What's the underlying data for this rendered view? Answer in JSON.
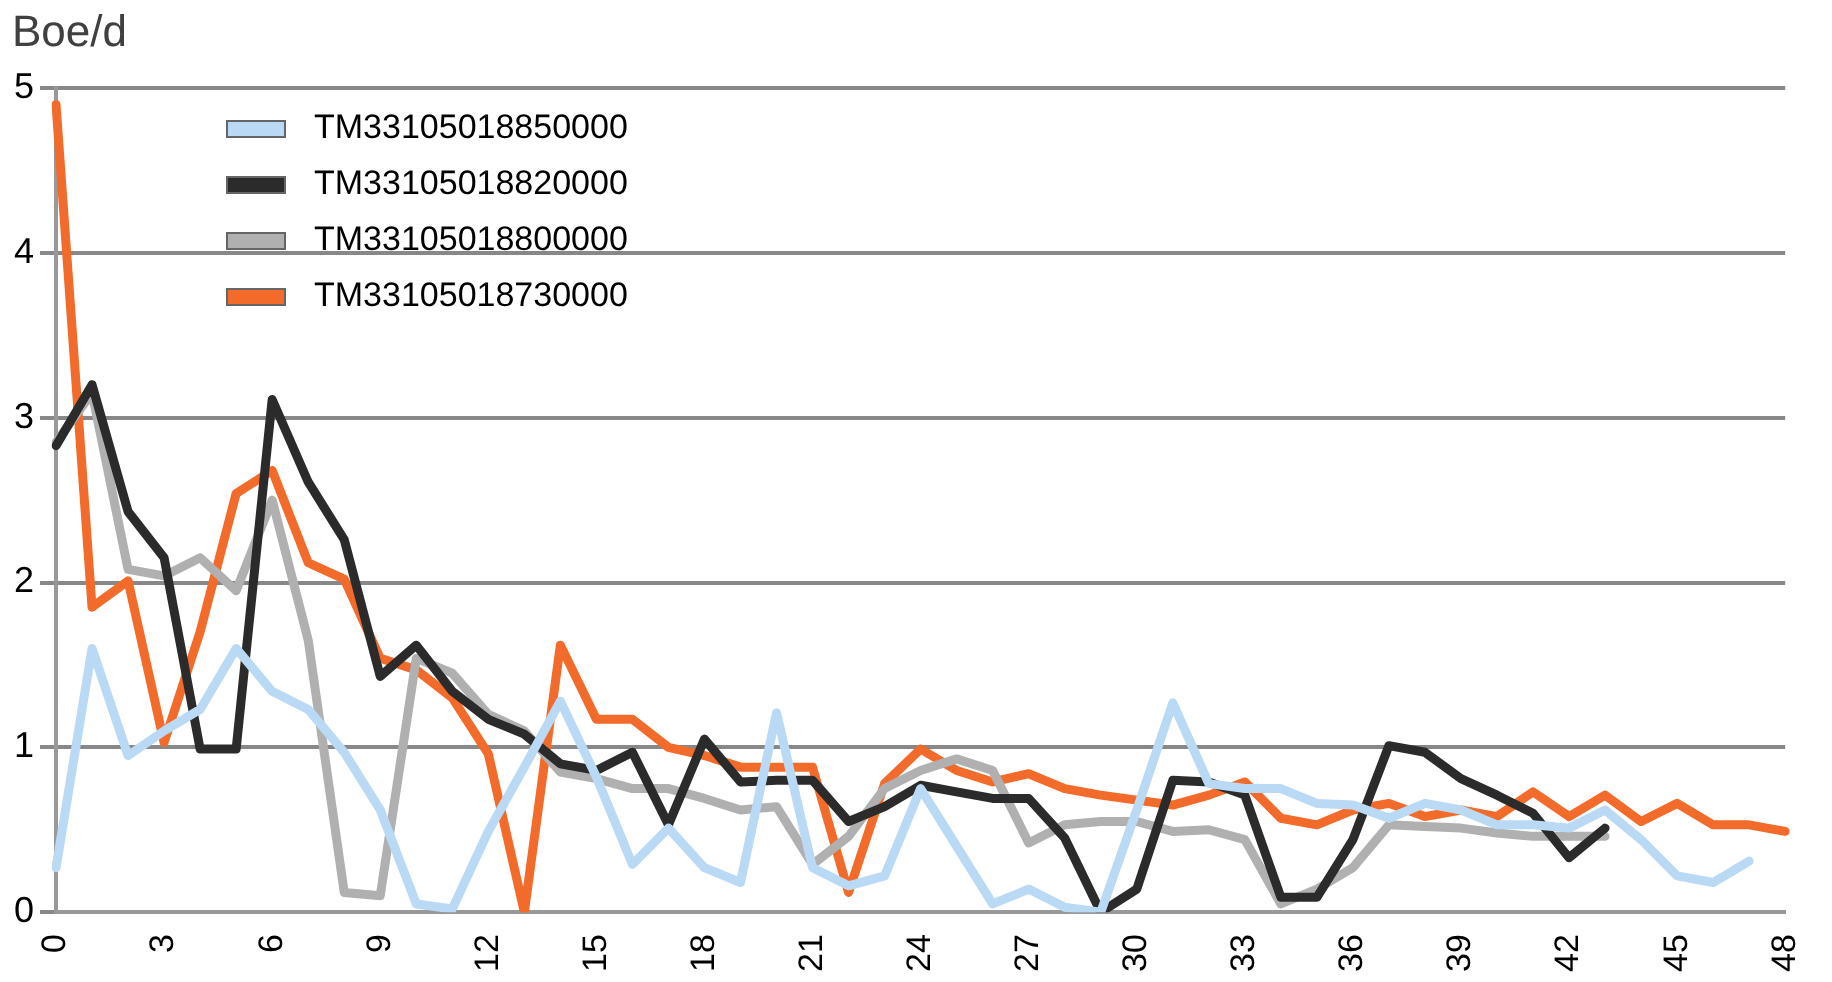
{
  "chart_data": {
    "type": "line",
    "ylabel": "Boe/d",
    "categories": [
      "0",
      null,
      null,
      "3",
      null,
      null,
      "6",
      null,
      null,
      "9",
      null,
      null,
      "12",
      null,
      null,
      "15",
      null,
      null,
      "18",
      null,
      null,
      "21",
      null,
      null,
      "24",
      null,
      null,
      "27",
      null,
      null,
      "30",
      null,
      null,
      "33",
      null,
      null,
      "36",
      null,
      null,
      "39",
      null,
      null,
      "42",
      null,
      null,
      "45",
      null,
      null,
      "48"
    ],
    "ylim": [
      0,
      5
    ],
    "yticks": [
      0,
      1,
      2,
      3,
      4,
      5
    ],
    "grid": "y",
    "legend": "top left",
    "marker": "none",
    "line_style": "solid",
    "series": [
      {
        "name": "TM33105018850000",
        "color": "#b9d9f5",
        "values": [
          0.27,
          1.6,
          0.95,
          1.1,
          1.23,
          1.6,
          1.34,
          1.23,
          0.97,
          0.62,
          0.05,
          0.02,
          0.49,
          0.88,
          1.28,
          0.82,
          0.29,
          0.51,
          0.27,
          0.18,
          1.21,
          0.27,
          0.16,
          0.22,
          0.75,
          0.4,
          0.05,
          0.14,
          0.03,
          0,
          0.62,
          1.27,
          0.78,
          0.75,
          0.75,
          0.66,
          0.65,
          0.57,
          0.66,
          0.62,
          0.53,
          0.53,
          0.51,
          0.62,
          0.44,
          0.22,
          0.18,
          0.31,
          null
        ]
      },
      {
        "name": "TM33105018820000",
        "color": "#2b2b2b",
        "values": [
          2.83,
          3.2,
          2.43,
          2.15,
          0.99,
          0.99,
          3.11,
          2.61,
          2.26,
          1.43,
          1.62,
          1.34,
          1.17,
          1.08,
          0.9,
          0.86,
          0.97,
          0.53,
          1.05,
          0.79,
          0.8,
          0.8,
          0.55,
          0.64,
          0.77,
          0.73,
          0.69,
          0.69,
          0.45,
          0,
          0.14,
          0.8,
          0.79,
          0.71,
          0.09,
          0.09,
          0.44,
          1.01,
          0.97,
          0.81,
          0.71,
          0.6,
          0.33,
          0.51,
          null,
          null,
          null,
          null,
          null
        ]
      },
      {
        "name": "TM33105018800000",
        "color": "#b0b0b0",
        "values": [
          2.85,
          3.15,
          2.08,
          2.04,
          2.15,
          1.95,
          2.5,
          1.65,
          0.12,
          0.1,
          1.54,
          1.45,
          1.2,
          1.1,
          0.85,
          0.81,
          0.75,
          0.75,
          0.69,
          0.62,
          0.64,
          0.29,
          0.46,
          0.75,
          0.86,
          0.93,
          0.86,
          0.42,
          0.53,
          0.55,
          0.55,
          0.49,
          0.5,
          0.44,
          0.05,
          0.14,
          0.27,
          0.53,
          0.52,
          0.51,
          0.48,
          0.46,
          0.46,
          0.46,
          null,
          null,
          null,
          null,
          null
        ]
      },
      {
        "name": "TM33105018730000",
        "color": "#f26b2b",
        "values": [
          4.9,
          1.85,
          2.01,
          1.03,
          1.7,
          2.54,
          2.68,
          2.12,
          2.02,
          1.54,
          1.47,
          1.3,
          0.96,
          0,
          1.62,
          1.17,
          1.17,
          1.0,
          0.95,
          0.88,
          0.88,
          0.88,
          0.12,
          0.78,
          0.99,
          0.86,
          0.79,
          0.84,
          0.75,
          0.71,
          0.68,
          0.65,
          0.71,
          0.79,
          0.57,
          0.53,
          0.62,
          0.66,
          0.58,
          0.62,
          0.58,
          0.73,
          0.58,
          0.71,
          0.55,
          0.66,
          0.53,
          0.53,
          0.49
        ]
      }
    ]
  }
}
